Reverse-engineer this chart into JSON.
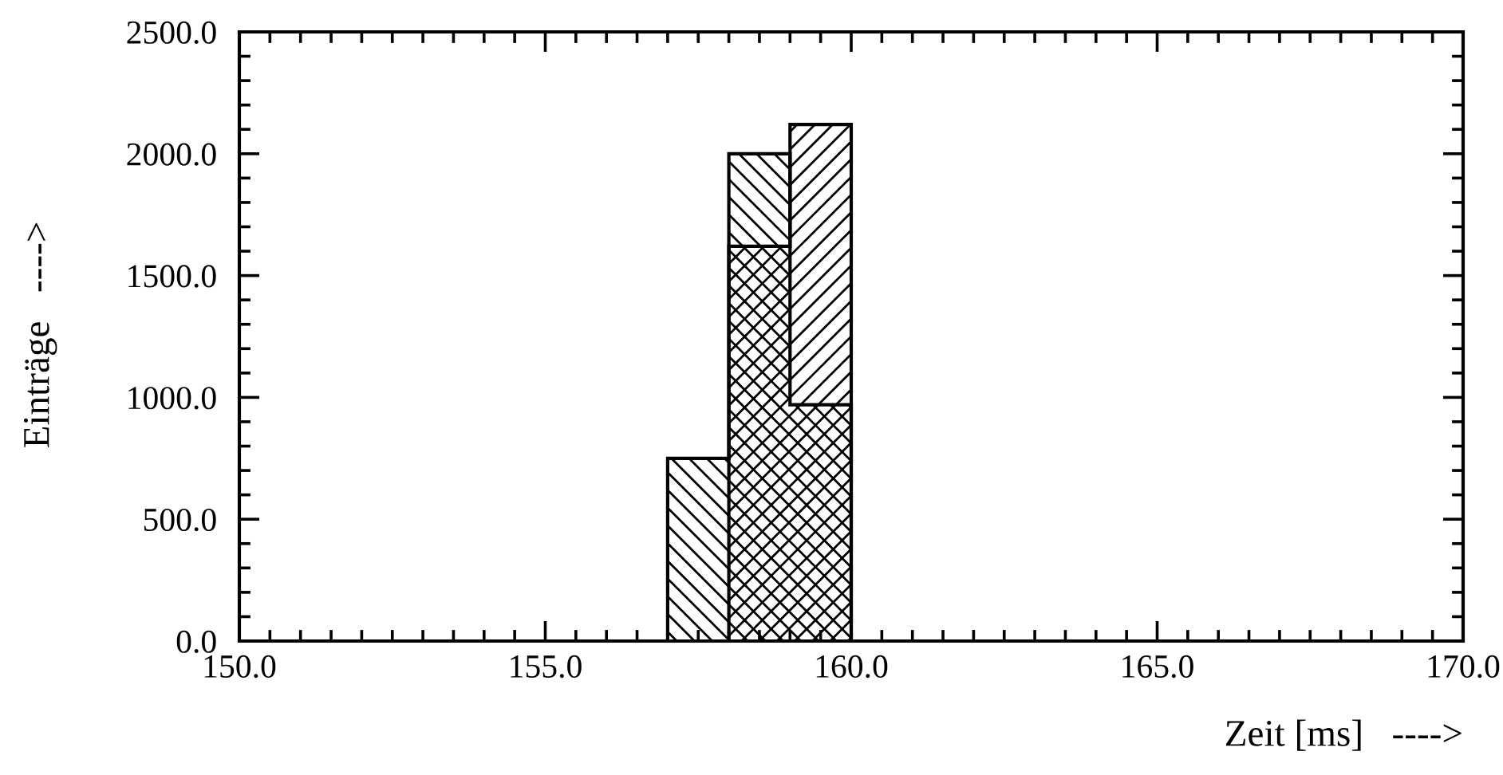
{
  "chart_data": {
    "type": "histogram",
    "xlabel": "Zeit [ms]   ---->",
    "ylabel": "Einträge   ---->",
    "bins": [
      157.0,
      158.0,
      159.0,
      160.0
    ],
    "series": [
      {
        "color": "#000000",
        "values": [
          750,
          2000,
          970
        ]
      },
      {
        "color": "#000000",
        "values": [
          0,
          1620,
          2120
        ]
      }
    ],
    "xlim": [
      150.0,
      170.0
    ],
    "xticks": [
      {
        "value": 150,
        "label": "150.0"
      },
      {
        "value": 155,
        "label": "155.0"
      },
      {
        "value": 160,
        "label": "160.0"
      },
      {
        "value": 165,
        "label": "165.0"
      },
      {
        "value": 170,
        "label": "170.0"
      }
    ],
    "ylim": [
      0,
      2500
    ],
    "yticks": [
      {
        "value": 0,
        "label": "0.0"
      },
      {
        "value": 500,
        "label": "500.0"
      },
      {
        "value": 1000,
        "label": "1000.0"
      },
      {
        "value": 1500,
        "label": "1500.0"
      },
      {
        "value": 2000,
        "label": "2000.0"
      },
      {
        "value": 2500,
        "label": "2500.0"
      }
    ],
    "grid": false,
    "legend": false
  }
}
